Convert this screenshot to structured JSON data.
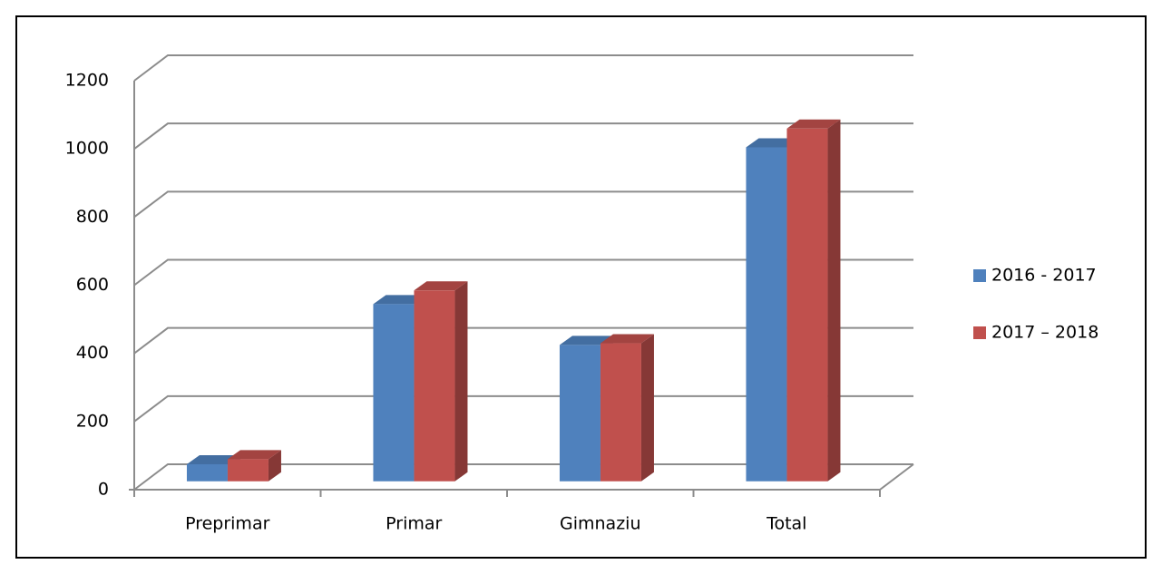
{
  "chart_data": {
    "type": "bar3d",
    "categories": [
      "Preprimar",
      "Primar",
      "Gimnaziu",
      "Total"
    ],
    "series": [
      {
        "name": "2016 - 2017",
        "color": "#4f81bd",
        "values": [
          50,
          520,
          400,
          980
        ]
      },
      {
        "name": "2017 – 2018",
        "color": "#c0504d",
        "values": [
          65,
          560,
          405,
          1035
        ]
      }
    ],
    "ylim": [
      0,
      1200
    ],
    "yticks": [
      0,
      200,
      400,
      600,
      800,
      1000,
      1200
    ],
    "grid": true,
    "legend": "right"
  }
}
